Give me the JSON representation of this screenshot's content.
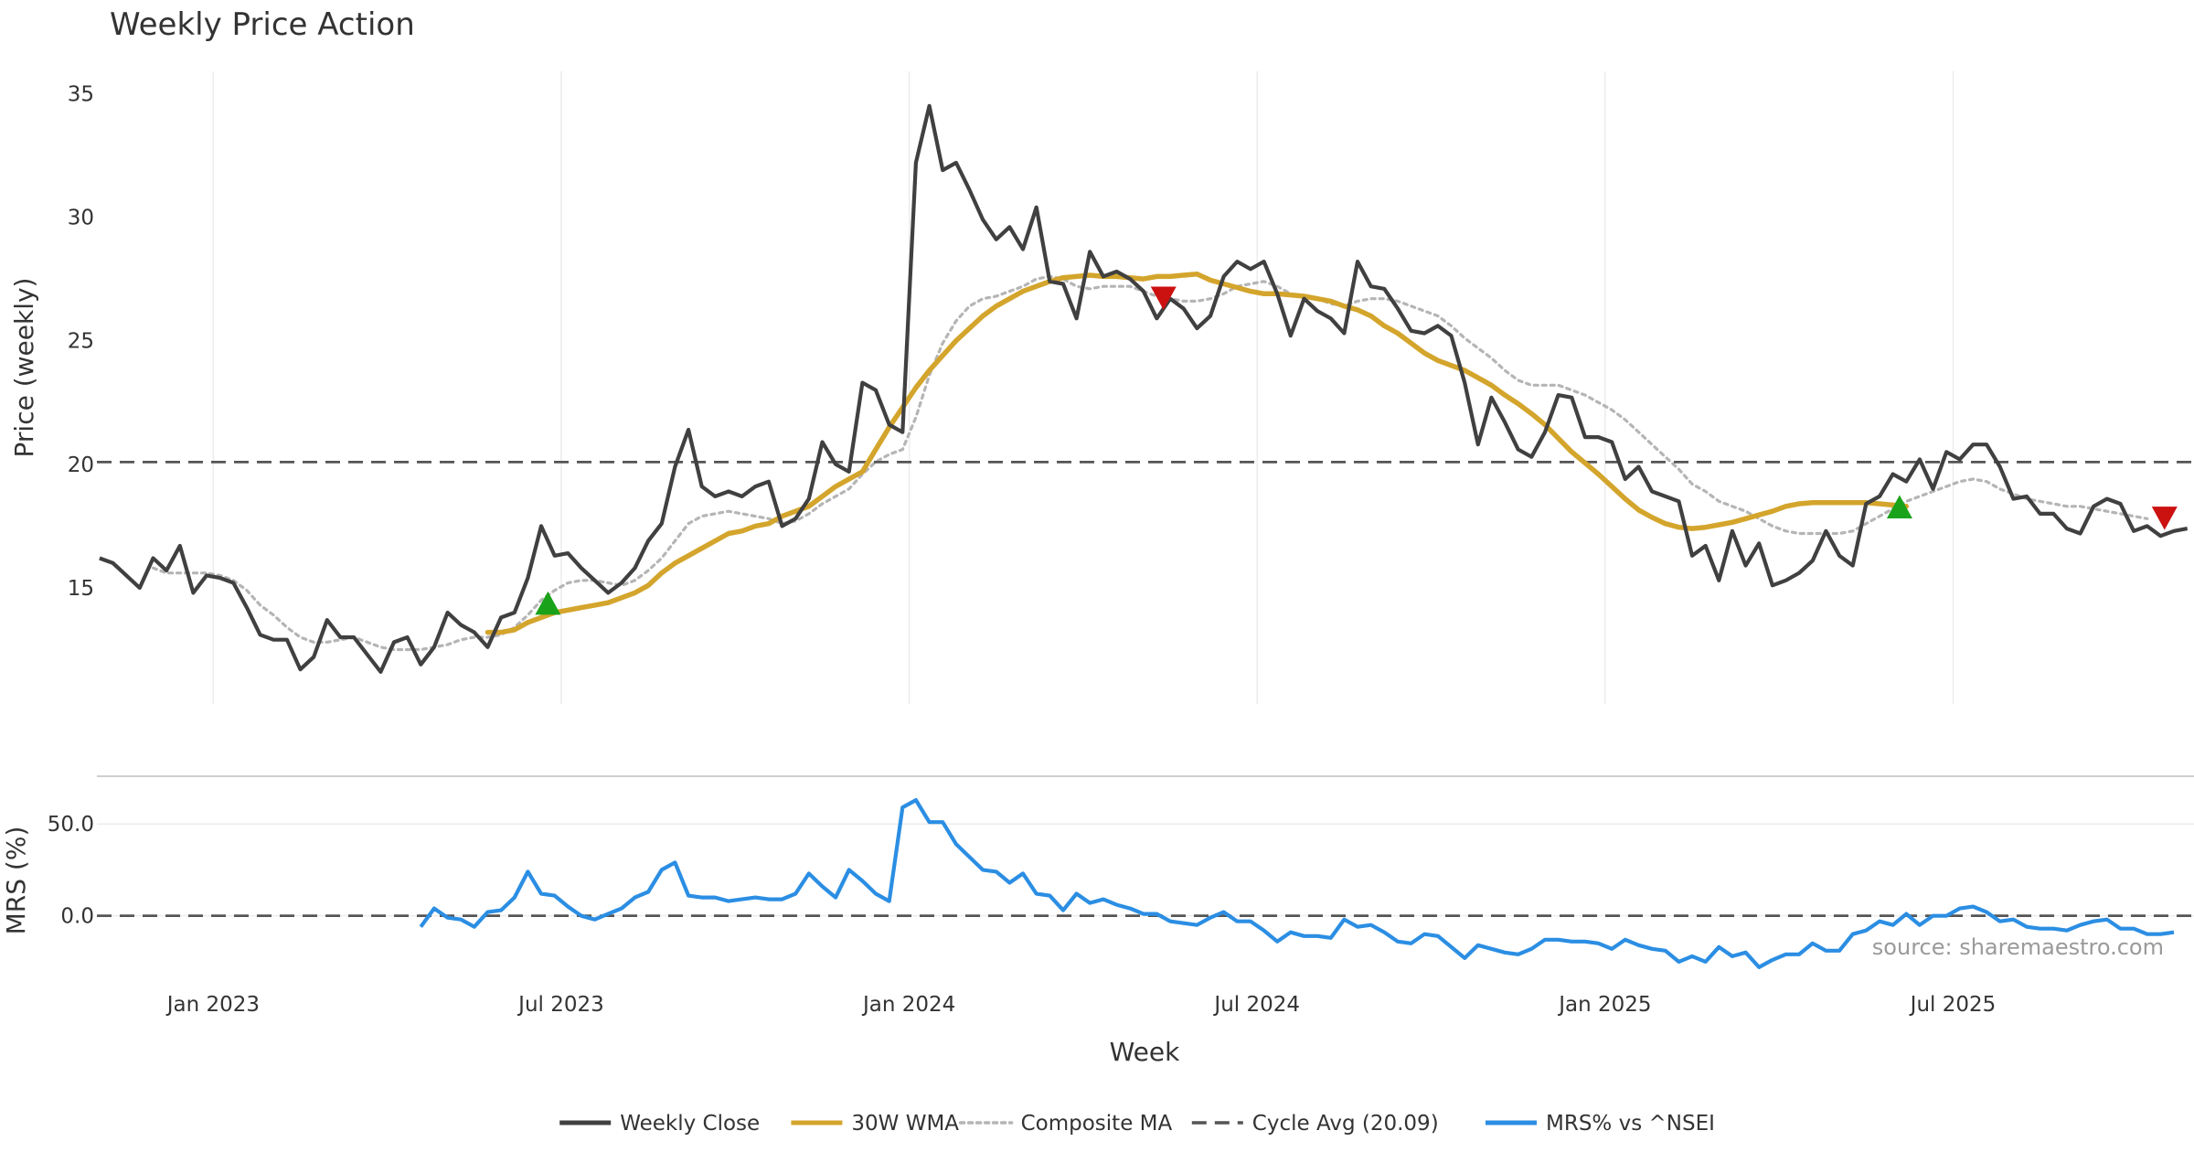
{
  "chart_data": [
    {
      "type": "line",
      "title": "Weekly Price Action",
      "xlabel": "Week",
      "ylabel": "Price (weekly)",
      "ylim": [
        10.3,
        35.9
      ],
      "yticks": [
        15,
        20,
        25,
        30,
        35
      ],
      "x_ticks": [
        {
          "label": "Jan 2023",
          "week": 4.5
        },
        {
          "label": "Jul 2023",
          "week": 30.5
        },
        {
          "label": "Jan 2024",
          "week": 56.5
        },
        {
          "label": "Jul 2024",
          "week": 82.5
        },
        {
          "label": "Jan 2025",
          "week": 108.5
        },
        {
          "label": "Jul 2025",
          "week": 134.5
        }
      ],
      "x_range_weeks": [
        -4.2,
        152.5
      ],
      "grid": "vertical",
      "series": [
        {
          "name": "Weekly Close",
          "color": "#404040",
          "start_week": -4,
          "values": [
            16.2,
            16.0,
            15.5,
            15.0,
            16.2,
            15.7,
            16.7,
            14.8,
            15.5,
            15.4,
            15.2,
            14.2,
            13.1,
            12.9,
            12.9,
            11.7,
            12.2,
            13.7,
            13.0,
            13.0,
            12.3,
            11.6,
            12.8,
            13.0,
            11.9,
            12.6,
            14.0,
            13.5,
            13.2,
            12.6,
            13.8,
            14.0,
            15.4,
            17.5,
            16.3,
            16.4,
            15.8,
            15.3,
            14.8,
            15.2,
            15.8,
            16.9,
            17.6,
            19.9,
            21.4,
            19.1,
            18.7,
            18.9,
            18.7,
            19.1,
            19.3,
            17.5,
            17.8,
            18.6,
            20.9,
            20.0,
            19.7,
            23.3,
            23.0,
            21.6,
            21.3,
            32.2,
            34.5,
            31.9,
            32.2,
            31.1,
            29.9,
            29.1,
            29.6,
            28.7,
            30.4,
            27.4,
            27.3,
            25.9,
            28.6,
            27.6,
            27.8,
            27.5,
            27.0,
            25.9,
            26.7,
            26.3,
            25.5,
            26.0,
            27.6,
            28.2,
            27.9,
            28.2,
            26.9,
            25.2,
            26.7,
            26.2,
            25.9,
            25.3,
            28.2,
            27.2,
            27.1,
            26.3,
            25.4,
            25.3,
            25.6,
            25.2,
            23.3,
            20.8,
            22.7,
            21.7,
            20.6,
            20.3,
            21.3,
            22.8,
            22.7,
            21.1,
            21.1,
            20.9,
            19.4,
            19.9,
            18.9,
            18.7,
            18.5,
            16.3,
            16.7,
            15.3,
            17.3,
            15.9,
            16.8,
            15.1,
            15.3,
            15.6,
            16.1,
            17.3,
            16.3,
            15.9,
            18.4,
            18.7,
            19.6,
            19.3,
            20.2,
            19.0,
            20.5,
            20.2,
            20.8,
            20.8,
            19.9,
            18.6,
            18.7,
            18.0,
            18.0,
            17.4,
            17.2,
            18.3,
            18.6,
            18.4,
            17.3,
            17.5,
            17.1,
            17.3,
            17.4
          ]
        },
        {
          "name": "30W WMA",
          "color": "#d4a52c",
          "start_week": 25,
          "values": [
            13.2,
            13.2,
            13.3,
            13.6,
            13.8,
            14.0,
            14.1,
            14.2,
            14.3,
            14.4,
            14.6,
            14.8,
            15.1,
            15.6,
            16.0,
            16.3,
            16.6,
            16.9,
            17.2,
            17.3,
            17.5,
            17.6,
            17.9,
            18.1,
            18.3,
            18.7,
            19.1,
            19.4,
            19.7,
            20.6,
            21.5,
            22.3,
            23.1,
            23.8,
            24.4,
            25.0,
            25.5,
            26.0,
            26.4,
            26.7,
            27.0,
            27.2,
            27.4,
            27.55,
            27.6,
            27.65,
            27.6,
            27.6,
            27.55,
            27.5,
            27.6,
            27.6,
            27.65,
            27.7,
            27.45,
            27.3,
            27.15,
            27.0,
            26.9,
            26.9,
            26.85,
            26.8,
            26.7,
            26.6,
            26.4,
            26.25,
            26.0,
            25.6,
            25.3,
            24.9,
            24.5,
            24.2,
            24.0,
            23.8,
            23.5,
            23.2,
            22.8,
            22.45,
            22.05,
            21.6,
            21.05,
            20.5,
            20.05,
            19.6,
            19.1,
            18.6,
            18.15,
            17.85,
            17.6,
            17.45,
            17.4,
            17.45,
            17.55,
            17.65,
            17.8,
            17.95,
            18.1,
            18.3,
            18.4,
            18.45,
            18.45,
            18.45,
            18.45,
            18.45,
            18.4,
            18.35,
            18.3
          ]
        },
        {
          "name": "Composite MA",
          "color": "#b5b5b5",
          "start_week": -4,
          "values": [
            null,
            null,
            null,
            null,
            15.8,
            15.6,
            15.6,
            15.6,
            15.6,
            15.5,
            15.3,
            14.9,
            14.3,
            13.9,
            13.4,
            13.0,
            12.8,
            12.8,
            12.9,
            13.0,
            12.8,
            12.6,
            12.5,
            12.5,
            12.5,
            12.6,
            12.7,
            12.9,
            13.0,
            13.0,
            13.1,
            13.4,
            13.9,
            14.5,
            14.9,
            15.2,
            15.3,
            15.3,
            15.2,
            15.1,
            15.3,
            15.7,
            16.2,
            16.9,
            17.6,
            17.9,
            18.0,
            18.1,
            18.0,
            17.9,
            17.8,
            17.6,
            17.7,
            18.0,
            18.4,
            18.7,
            19.0,
            19.6,
            20.1,
            20.4,
            20.6,
            21.9,
            23.6,
            24.9,
            25.8,
            26.4,
            26.7,
            26.8,
            27.0,
            27.2,
            27.5,
            27.6,
            27.5,
            27.2,
            27.1,
            27.2,
            27.2,
            27.2,
            27.0,
            26.8,
            26.7,
            26.6,
            26.6,
            26.7,
            26.9,
            27.2,
            27.3,
            27.4,
            27.2,
            26.9,
            26.8,
            26.7,
            26.5,
            26.4,
            26.6,
            26.7,
            26.7,
            26.6,
            26.4,
            26.2,
            26.0,
            25.6,
            25.1,
            24.7,
            24.3,
            23.8,
            23.4,
            23.2,
            23.2,
            23.2,
            23.0,
            22.8,
            22.5,
            22.2,
            21.8,
            21.3,
            20.8,
            20.3,
            19.8,
            19.2,
            18.9,
            18.5,
            18.3,
            18.1,
            17.8,
            17.5,
            17.3,
            17.2,
            17.2,
            17.2,
            17.2,
            17.3,
            17.6,
            17.9,
            18.2,
            18.5,
            18.7,
            18.9,
            19.1,
            19.3,
            19.4,
            19.3,
            19.0,
            18.8,
            18.6,
            18.5,
            18.4,
            18.3,
            18.3,
            18.2,
            18.1,
            18.0,
            17.9,
            17.8
          ]
        },
        {
          "name": "Cycle Avg (20.09)",
          "color": "#555555",
          "type": "hline",
          "value": 20.09
        }
      ],
      "signals": [
        {
          "type": "buy",
          "week": 29.5,
          "value": 14.3,
          "color": "#1aa31a"
        },
        {
          "type": "sell",
          "week": 75.5,
          "value": 26.8,
          "color": "#cc1111"
        },
        {
          "type": "buy",
          "week": 130.5,
          "value": 18.2,
          "color": "#1aa31a"
        },
        {
          "type": "sell",
          "week": 150.3,
          "value": 17.9,
          "color": "#cc1111"
        }
      ]
    },
    {
      "type": "line",
      "ylabel": "MRS (%)",
      "ylim": [
        -38,
        72
      ],
      "yticks": [
        0.0,
        50.0
      ],
      "ytick_labels": [
        "0.0",
        "50.0"
      ],
      "series": [
        {
          "name": "MRS% vs ^NSEI",
          "color": "#2b8ee3",
          "start_week": 20,
          "values": [
            -6,
            4,
            -1,
            -2,
            -6,
            2,
            3,
            10,
            24,
            12,
            11,
            5,
            0,
            -2,
            1,
            4,
            10,
            13,
            25,
            29,
            11,
            10,
            10,
            8,
            9,
            10,
            9,
            9,
            12,
            23,
            16,
            10,
            25,
            19,
            12,
            8,
            59,
            63,
            51,
            51,
            39,
            32,
            25,
            24,
            18,
            23,
            12,
            11,
            3,
            12,
            7,
            9,
            6,
            4,
            1,
            1,
            -3,
            -4,
            -5,
            -1,
            2,
            -3,
            -3,
            -8,
            -14,
            -9,
            -11,
            -11,
            -12,
            -2,
            -6,
            -5,
            -9,
            -14,
            -15,
            -10,
            -11,
            -17,
            -23,
            -16,
            -18,
            -20,
            -21,
            -18,
            -13,
            -13,
            -14,
            -14,
            -15,
            -18,
            -13,
            -16,
            -18,
            -19,
            -25,
            -22,
            -25,
            -17,
            -22,
            -20,
            -28,
            -24,
            -21,
            -21,
            -15,
            -19,
            -19,
            -10,
            -8,
            -3,
            -5,
            1,
            -5,
            0,
            0,
            4,
            5,
            2,
            -3,
            -2,
            -6,
            -7,
            -7,
            -8,
            -5,
            -3,
            -2,
            -7,
            -7,
            -10,
            -10,
            -9
          ]
        },
        {
          "name": "zero",
          "color": "#555555",
          "type": "hline",
          "value": 0
        }
      ],
      "annotation": "source: sharemaestro.com"
    }
  ],
  "legend": [
    {
      "label": "Weekly Close",
      "color": "#404040",
      "style": "solid"
    },
    {
      "label": "30W WMA",
      "color": "#d4a52c",
      "style": "solid"
    },
    {
      "label": "Composite MA",
      "color": "#b5b5b5",
      "style": "dotted"
    },
    {
      "label": "Cycle Avg (20.09)",
      "color": "#555555",
      "style": "dashed"
    },
    {
      "label": "MRS% vs ^NSEI",
      "color": "#2b8ee3",
      "style": "solid"
    }
  ]
}
